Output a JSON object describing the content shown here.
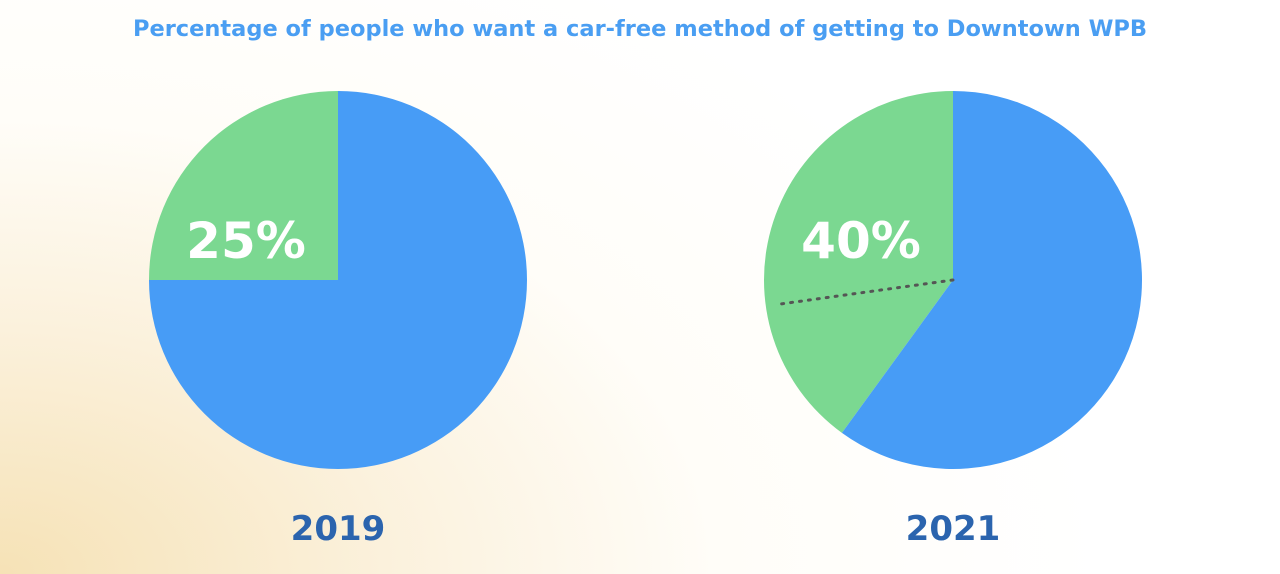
{
  "colors": {
    "title": "#4a9ef2",
    "primary_slice": "#479cf6",
    "highlight_slice": "#7bd891",
    "year_label": "#2b64ae",
    "percent_label": "#ffffff",
    "divider": "#555555"
  },
  "chart_data": {
    "type": "pie",
    "title": "Percentage of people who want a car-free method of getting to Downtown WPB",
    "charts": [
      {
        "category": "2019",
        "slices": [
          {
            "value": 25,
            "color_key": "highlight_slice"
          },
          {
            "value": 75,
            "color_key": "primary_slice"
          }
        ],
        "label": "25%",
        "divider": "none"
      },
      {
        "category": "2021",
        "slices": [
          {
            "value": 40,
            "color_key": "highlight_slice"
          },
          {
            "value": 60,
            "color_key": "primary_slice"
          }
        ],
        "label": "40%",
        "divider": "dotted"
      }
    ]
  }
}
